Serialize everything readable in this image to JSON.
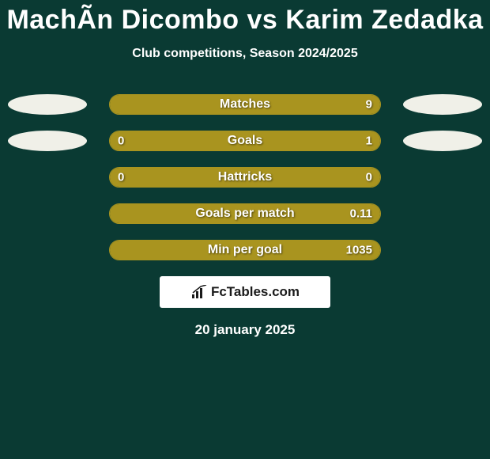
{
  "colors": {
    "background": "#0a3a33",
    "accent": "#a9941f",
    "white": "#ffffff",
    "offwhite": "#f0f0e8",
    "logo_bg": "#ffffff",
    "logo_text": "#1a1a1a"
  },
  "title": "MachÃn Dicombo vs Karim Zedadka",
  "subtitle": "Club competitions, Season 2024/2025",
  "date": "20 january 2025",
  "logo": {
    "prefix": "Fc",
    "suffix": "Tables.com"
  },
  "stats": [
    {
      "label": "Matches",
      "left_val": "",
      "right_val": "9",
      "left_fill_pct": 0,
      "right_fill_pct": 100,
      "show_left_oval": true,
      "show_right_oval": true,
      "show_left_val": false,
      "show_right_val": true
    },
    {
      "label": "Goals",
      "left_val": "0",
      "right_val": "1",
      "left_fill_pct": 18,
      "right_fill_pct": 82,
      "show_left_oval": true,
      "show_right_oval": true,
      "show_left_val": true,
      "show_right_val": true
    },
    {
      "label": "Hattricks",
      "left_val": "0",
      "right_val": "0",
      "left_fill_pct": 100,
      "right_fill_pct": 0,
      "show_left_oval": false,
      "show_right_oval": false,
      "show_left_val": true,
      "show_right_val": true
    },
    {
      "label": "Goals per match",
      "left_val": "",
      "right_val": "0.11",
      "left_fill_pct": 0,
      "right_fill_pct": 100,
      "show_left_oval": false,
      "show_right_oval": false,
      "show_left_val": false,
      "show_right_val": true
    },
    {
      "label": "Min per goal",
      "left_val": "",
      "right_val": "1035",
      "left_fill_pct": 0,
      "right_fill_pct": 100,
      "show_left_oval": false,
      "show_right_oval": false,
      "show_left_val": false,
      "show_right_val": true
    }
  ]
}
